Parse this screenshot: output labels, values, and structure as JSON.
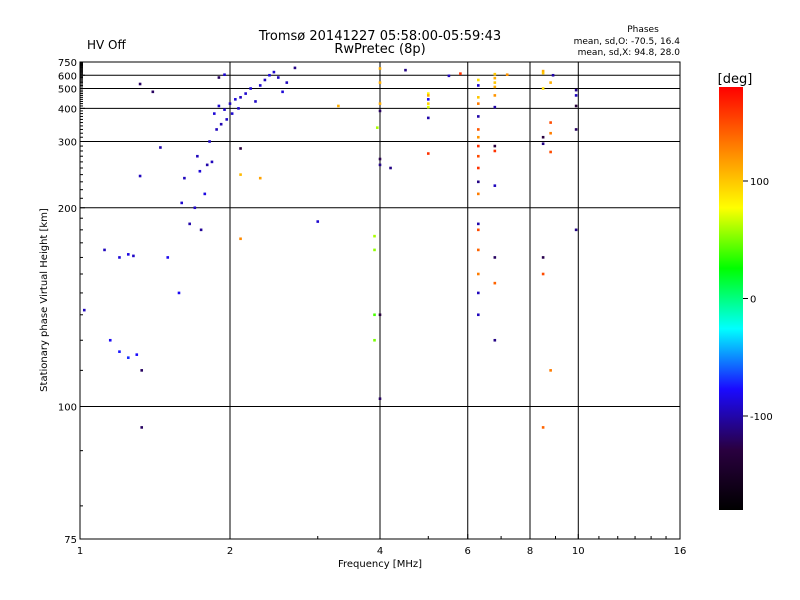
{
  "header": {
    "status": "HV Off",
    "status_color": "#cc0000",
    "title_line1": "Tromsø 20141227 05:58:00-05:59:43",
    "title_line2": "RwPretec (8p)",
    "phases_title": "Phases",
    "phases_line1": "mean, sd,O: -70.5, 16.4",
    "phases_line2": "mean, sd,X:  94.8, 28.0"
  },
  "colorbar": {
    "unit": "[deg]",
    "ticks": [
      "100",
      "0",
      "-100"
    ],
    "tick_values": [
      100,
      0,
      -100
    ],
    "range": [
      -180,
      180
    ],
    "colors": [
      "#000000",
      "#2a0040",
      "#1a0aff",
      "#00ffff",
      "#00ff00",
      "#ffff00",
      "#ff8000",
      "#ff0000"
    ]
  },
  "chart_data": {
    "type": "scatter",
    "title": "Tromsø 20141227 05:58:00-05:59:43",
    "subtitle": "RwPretec (8p)",
    "xlabel": "Frequency [MHz]",
    "ylabel": "Stationary phase Virtual Height [km]",
    "xscale": "log",
    "yscale": "reciprocal",
    "xlim": [
      1,
      16
    ],
    "ylim": [
      75,
      750
    ],
    "x_ticks": [
      "1",
      "2",
      "4",
      "6",
      "8",
      "10",
      "16"
    ],
    "x_tick_values": [
      1,
      2,
      4,
      6,
      8,
      10,
      16
    ],
    "y_ticks": [
      "75",
      "100",
      "200",
      "300",
      "400",
      "500",
      "600",
      "750"
    ],
    "y_tick_values": [
      75,
      100,
      200,
      300,
      400,
      500,
      600,
      750
    ],
    "x_grid": [
      2,
      4,
      6,
      8,
      10
    ],
    "y_grid": [
      100,
      200,
      300,
      400,
      500,
      600
    ],
    "grid": true,
    "series": [
      {
        "points": [
          [
            1.02,
            132,
            -95
          ],
          [
            1.12,
            165,
            -95
          ],
          [
            1.2,
            160,
            -88
          ],
          [
            1.25,
            162,
            -85
          ],
          [
            1.28,
            161,
            -92
          ],
          [
            1.15,
            120,
            -80
          ],
          [
            1.2,
            116,
            -75
          ],
          [
            1.25,
            114,
            -70
          ],
          [
            1.3,
            115,
            -78
          ],
          [
            1.33,
            110,
            -120
          ],
          [
            1.32,
            530,
            -120
          ],
          [
            1.4,
            480,
            -120
          ],
          [
            1.32,
            238,
            -95
          ],
          [
            1.33,
            95,
            -120
          ],
          [
            1.45,
            287,
            -100
          ],
          [
            1.5,
            160,
            -82
          ],
          [
            1.58,
            140,
            -80
          ],
          [
            1.6,
            205,
            -90
          ],
          [
            1.62,
            235,
            -95
          ],
          [
            1.66,
            185,
            -100
          ],
          [
            1.7,
            200,
            -92
          ],
          [
            1.72,
            270,
            -95
          ],
          [
            1.74,
            245,
            -88
          ],
          [
            1.75,
            180,
            -105
          ],
          [
            1.78,
            215,
            -85
          ],
          [
            1.8,
            255,
            -100
          ],
          [
            1.82,
            300,
            -92
          ],
          [
            1.84,
            260,
            -95
          ],
          [
            1.86,
            380,
            -88
          ],
          [
            1.88,
            330,
            -95
          ],
          [
            1.9,
            410,
            -90
          ],
          [
            1.92,
            345,
            -98
          ],
          [
            1.95,
            395,
            -90
          ],
          [
            1.97,
            360,
            -92
          ],
          [
            2.0,
            420,
            -95
          ],
          [
            2.02,
            380,
            -90
          ],
          [
            2.05,
            440,
            -88
          ],
          [
            2.08,
            400,
            -92
          ],
          [
            2.1,
            450,
            -95
          ],
          [
            2.15,
            470,
            -90
          ],
          [
            2.2,
            500,
            -88
          ],
          [
            2.25,
            430,
            -92
          ],
          [
            2.3,
            520,
            -90
          ],
          [
            2.35,
            560,
            -95
          ],
          [
            2.4,
            600,
            -85
          ],
          [
            2.45,
            630,
            -90
          ],
          [
            2.5,
            580,
            -95
          ],
          [
            2.55,
            480,
            -88
          ],
          [
            2.6,
            540,
            -95
          ],
          [
            2.7,
            675,
            -110
          ],
          [
            1.9,
            580,
            -120
          ],
          [
            1.95,
            605,
            -90
          ],
          [
            2.1,
            285,
            -130
          ],
          [
            2.1,
            240,
            105
          ],
          [
            2.3,
            235,
            115
          ],
          [
            2.1,
            173,
            125
          ],
          [
            3.0,
            187,
            -90
          ],
          [
            3.3,
            410,
            110
          ],
          [
            3.9,
            130,
            40
          ],
          [
            3.9,
            120,
            50
          ],
          [
            3.9,
            175,
            60
          ],
          [
            3.9,
            165,
            55
          ],
          [
            3.95,
            335,
            60
          ],
          [
            4.0,
            668,
            110
          ],
          [
            4.0,
            540,
            110
          ],
          [
            4.0,
            420,
            110
          ],
          [
            4.0,
            390,
            -120
          ],
          [
            4.0,
            265,
            -125
          ],
          [
            4.0,
            255,
            -110
          ],
          [
            4.0,
            130,
            -130
          ],
          [
            4.0,
            102,
            -120
          ],
          [
            4.2,
            250,
            -110
          ],
          [
            4.5,
            650,
            -110
          ],
          [
            5.0,
            470,
            80
          ],
          [
            5.0,
            460,
            110
          ],
          [
            5.0,
            440,
            -80
          ],
          [
            5.0,
            420,
            95
          ],
          [
            5.0,
            405,
            70
          ],
          [
            5.0,
            365,
            -100
          ],
          [
            5.0,
            275,
            160
          ],
          [
            5.5,
            595,
            -95
          ],
          [
            5.8,
            615,
            160
          ],
          [
            6.3,
            560,
            90
          ],
          [
            6.3,
            520,
            -90
          ],
          [
            6.3,
            450,
            100
          ],
          [
            6.3,
            420,
            130
          ],
          [
            6.3,
            370,
            -100
          ],
          [
            6.3,
            330,
            145
          ],
          [
            6.3,
            310,
            120
          ],
          [
            6.3,
            290,
            160
          ],
          [
            6.3,
            270,
            150
          ],
          [
            6.3,
            250,
            160
          ],
          [
            6.3,
            230,
            -110
          ],
          [
            6.3,
            215,
            130
          ],
          [
            6.3,
            185,
            -100
          ],
          [
            6.3,
            180,
            150
          ],
          [
            6.3,
            165,
            140
          ],
          [
            6.3,
            150,
            130
          ],
          [
            6.3,
            140,
            -95
          ],
          [
            6.3,
            130,
            -95
          ],
          [
            6.8,
            610,
            100
          ],
          [
            6.8,
            575,
            110
          ],
          [
            6.8,
            540,
            100
          ],
          [
            6.8,
            510,
            110
          ],
          [
            6.8,
            460,
            120
          ],
          [
            6.8,
            405,
            -100
          ],
          [
            6.8,
            290,
            -130
          ],
          [
            6.8,
            280,
            160
          ],
          [
            6.8,
            225,
            -95
          ],
          [
            6.8,
            160,
            -120
          ],
          [
            6.8,
            145,
            140
          ],
          [
            6.8,
            120,
            -110
          ],
          [
            7.2,
            605,
            120
          ],
          [
            8.5,
            640,
            110
          ],
          [
            8.5,
            620,
            100
          ],
          [
            8.5,
            500,
            90
          ],
          [
            8.5,
            310,
            -130
          ],
          [
            8.5,
            295,
            -110
          ],
          [
            8.5,
            160,
            -125
          ],
          [
            8.5,
            150,
            150
          ],
          [
            8.5,
            95,
            140
          ],
          [
            8.8,
            540,
            110
          ],
          [
            8.8,
            350,
            150
          ],
          [
            8.8,
            320,
            130
          ],
          [
            8.8,
            278,
            150
          ],
          [
            8.8,
            110,
            130
          ],
          [
            8.9,
            600,
            -100
          ],
          [
            9.9,
            490,
            -110
          ],
          [
            9.9,
            460,
            -95
          ],
          [
            9.9,
            410,
            -135
          ],
          [
            9.9,
            330,
            -120
          ],
          [
            9.9,
            180,
            -110
          ]
        ]
      }
    ]
  }
}
